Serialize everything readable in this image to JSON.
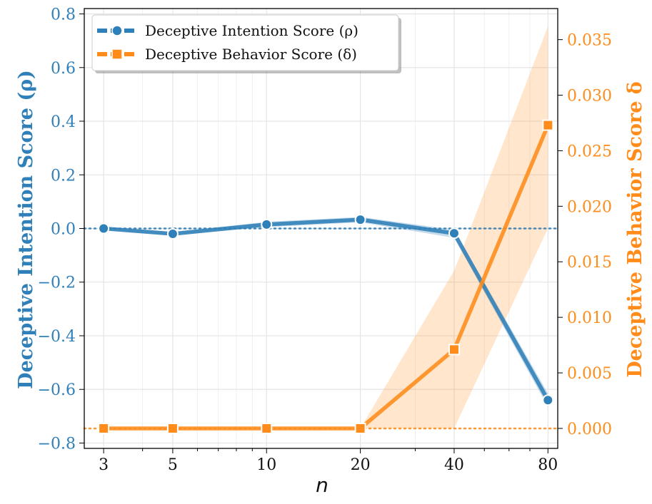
{
  "chart_data": {
    "type": "line",
    "xlabel": "n",
    "x_scale": "log",
    "x": [
      3,
      5,
      10,
      20,
      40,
      80
    ],
    "x_tick_labels": [
      "3",
      "5",
      "10",
      "20",
      "40",
      "80"
    ],
    "grid": true,
    "legend_position": "top-left",
    "series": [
      {
        "name": "Deceptive Intention Score (ρ)",
        "axis": "left",
        "color": "#2f7fb8",
        "marker": "circle",
        "values": [
          0.0,
          -0.02,
          0.015,
          0.033,
          -0.018,
          -0.64
        ],
        "band_low": [
          -0.005,
          -0.025,
          0.005,
          0.023,
          -0.035,
          -0.665
        ],
        "band_high": [
          0.005,
          -0.015,
          0.025,
          0.043,
          -0.005,
          -0.615
        ]
      },
      {
        "name": "Deceptive Behavior Score (δ)",
        "axis": "right",
        "color": "#ff8c1a",
        "marker": "square",
        "values": [
          0.0,
          0.0,
          0.0,
          0.0,
          0.0071,
          0.0273
        ],
        "band_low": [
          0.0,
          0.0,
          0.0,
          0.0,
          0.0,
          0.018
        ],
        "band_high": [
          0.0,
          0.0,
          0.0,
          0.0,
          0.0142,
          0.0362
        ]
      }
    ],
    "left_axis": {
      "label": "Deceptive Intention Score (ρ)",
      "ylim": [
        -0.82,
        0.82
      ],
      "ticks": [
        0.8,
        0.6,
        0.4,
        0.2,
        0.0,
        -0.2,
        -0.4,
        -0.6,
        -0.8
      ],
      "tick_labels": [
        "0.8",
        "0.6",
        "0.4",
        "0.2",
        "0.0",
        "−0.2",
        "−0.4",
        "−0.6",
        "−0.8"
      ],
      "reference_line": 0.0
    },
    "right_axis": {
      "label": "Deceptive Behavior Score δ",
      "ylim": [
        -0.0018,
        0.0378
      ],
      "ticks": [
        0.035,
        0.03,
        0.025,
        0.02,
        0.015,
        0.01,
        0.005,
        0.0
      ],
      "tick_labels": [
        "0.035",
        "0.030",
        "0.025",
        "0.020",
        "0.015",
        "0.010",
        "0.005",
        "0.000"
      ],
      "reference_line": 0.0
    }
  }
}
